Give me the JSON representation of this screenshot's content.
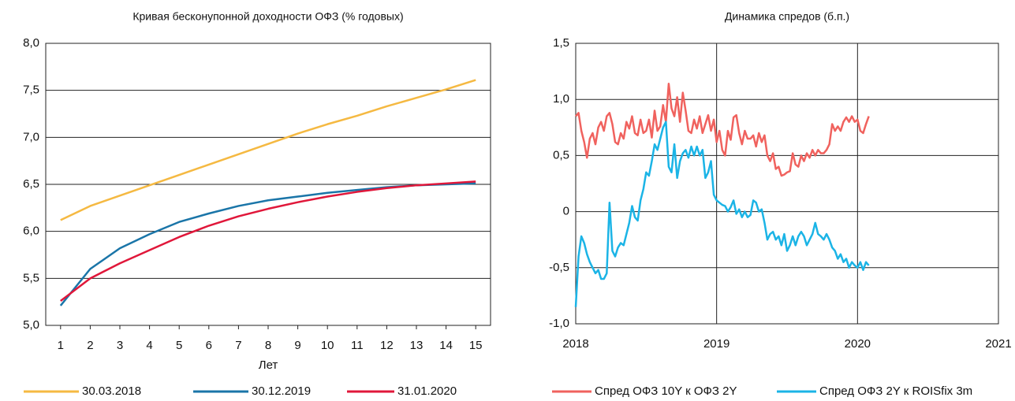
{
  "chart_data": [
    {
      "type": "line",
      "title": "Кривая бесконупонной доходности ОФЗ (% годовых)",
      "x_label": "Лет",
      "x": [
        1,
        2,
        3,
        4,
        5,
        6,
        7,
        8,
        9,
        10,
        11,
        12,
        13,
        14,
        15
      ],
      "xlim": [
        0.5,
        15.5
      ],
      "xticks": [
        1,
        2,
        3,
        4,
        5,
        6,
        7,
        8,
        9,
        10,
        11,
        12,
        13,
        14,
        15
      ],
      "ylim": [
        5,
        8
      ],
      "yticks": [
        {
          "value": 5,
          "label": "5,0"
        },
        {
          "value": 5.5,
          "label": "5,5"
        },
        {
          "value": 6,
          "label": "6,0"
        },
        {
          "value": 6.5,
          "label": "6,5"
        },
        {
          "value": 7,
          "label": "7,0"
        },
        {
          "value": 7.5,
          "label": "7,5"
        },
        {
          "value": 8,
          "label": "8,0"
        }
      ],
      "grid": "y",
      "legend": "bottom",
      "series": [
        {
          "name": "30.03.2018",
          "color": "#f5b942",
          "values": [
            6.12,
            6.27,
            6.38,
            6.49,
            6.6,
            6.71,
            6.82,
            6.93,
            7.04,
            7.14,
            7.23,
            7.33,
            7.42,
            7.51,
            7.61
          ]
        },
        {
          "name": "30.12.2019",
          "color": "#1a75a8",
          "values": [
            5.21,
            5.6,
            5.82,
            5.97,
            6.1,
            6.19,
            6.27,
            6.33,
            6.37,
            6.41,
            6.44,
            6.47,
            6.49,
            6.5,
            6.51
          ]
        },
        {
          "name": "31.01.2020",
          "color": "#e0173a",
          "values": [
            5.26,
            5.5,
            5.66,
            5.8,
            5.94,
            6.06,
            6.16,
            6.24,
            6.31,
            6.37,
            6.42,
            6.46,
            6.49,
            6.51,
            6.53
          ]
        }
      ]
    },
    {
      "type": "line",
      "title": "Динамика спредов (б.п.)",
      "x": [
        2018,
        2018.02,
        2018.04,
        2018.06,
        2018.08,
        2018.1,
        2018.12,
        2018.14,
        2018.16,
        2018.18,
        2018.2,
        2018.22,
        2018.24,
        2018.26,
        2018.28,
        2018.3,
        2018.32,
        2018.34,
        2018.36,
        2018.38,
        2018.4,
        2018.42,
        2018.44,
        2018.46,
        2018.48,
        2018.5,
        2018.52,
        2018.54,
        2018.56,
        2018.58,
        2018.6,
        2018.62,
        2018.64,
        2018.66,
        2018.68,
        2018.7,
        2018.72,
        2018.74,
        2018.76,
        2018.78,
        2018.8,
        2018.82,
        2018.84,
        2018.86,
        2018.88,
        2018.9,
        2018.92,
        2018.94,
        2018.96,
        2018.98,
        2019,
        2019.02,
        2019.04,
        2019.06,
        2019.08,
        2019.1,
        2019.12,
        2019.14,
        2019.16,
        2019.18,
        2019.2,
        2019.22,
        2019.24,
        2019.26,
        2019.28,
        2019.3,
        2019.32,
        2019.34,
        2019.36,
        2019.38,
        2019.4,
        2019.42,
        2019.44,
        2019.46,
        2019.48,
        2019.5,
        2019.52,
        2019.54,
        2019.56,
        2019.58,
        2019.6,
        2019.62,
        2019.64,
        2019.66,
        2019.68,
        2019.7,
        2019.72,
        2019.74,
        2019.76,
        2019.78,
        2019.8,
        2019.82,
        2019.84,
        2019.86,
        2019.88,
        2019.9,
        2019.92,
        2019.94,
        2019.96,
        2019.98,
        2020,
        2020.02,
        2020.04,
        2020.06,
        2020.08
      ],
      "xlim": [
        2018,
        2021
      ],
      "xticks": [
        2018,
        2019,
        2020,
        2021
      ],
      "ylim": [
        -1,
        1.5
      ],
      "yticks": [
        {
          "value": -1,
          "label": "-1,0"
        },
        {
          "value": -0.5,
          "label": "-0,5"
        },
        0,
        {
          "value": 0.5,
          "label": "0,5"
        },
        {
          "value": 1,
          "label": "1,0"
        },
        {
          "value": 1.5,
          "label": "1,5"
        }
      ],
      "grid": "both",
      "legend": "bottom",
      "series": [
        {
          "name": "Спред ОФЗ 10Y к ОФЗ 2Y",
          "color": "#f0625e",
          "values": [
            0.85,
            0.88,
            0.72,
            0.62,
            0.48,
            0.65,
            0.7,
            0.6,
            0.75,
            0.8,
            0.72,
            0.85,
            0.88,
            0.78,
            0.62,
            0.6,
            0.7,
            0.65,
            0.8,
            0.74,
            0.85,
            0.7,
            0.68,
            0.82,
            0.7,
            0.72,
            0.82,
            0.66,
            0.9,
            0.72,
            0.76,
            0.95,
            0.8,
            1.14,
            0.92,
            0.85,
            1.02,
            0.8,
            1.06,
            0.9,
            0.72,
            0.7,
            0.82,
            0.74,
            0.85,
            0.7,
            0.78,
            0.86,
            0.72,
            0.82,
            0.62,
            0.72,
            0.55,
            0.5,
            0.72,
            0.64,
            0.84,
            0.86,
            0.7,
            0.6,
            0.72,
            0.65,
            0.65,
            0.68,
            0.58,
            0.7,
            0.62,
            0.68,
            0.5,
            0.45,
            0.52,
            0.38,
            0.4,
            0.32,
            0.33,
            0.35,
            0.36,
            0.52,
            0.42,
            0.4,
            0.5,
            0.45,
            0.52,
            0.48,
            0.55,
            0.5,
            0.55,
            0.52,
            0.52,
            0.55,
            0.6,
            0.78,
            0.72,
            0.76,
            0.72,
            0.8,
            0.84,
            0.8,
            0.85,
            0.8,
            0.82,
            0.72,
            0.7,
            0.78,
            0.85
          ]
        },
        {
          "name": "Спред ОФЗ 2Y к ROISfix 3m",
          "color": "#1bb4e6",
          "values": [
            -0.85,
            -0.4,
            -0.22,
            -0.28,
            -0.38,
            -0.45,
            -0.5,
            -0.55,
            -0.52,
            -0.6,
            -0.6,
            -0.55,
            0.08,
            -0.35,
            -0.4,
            -0.32,
            -0.28,
            -0.3,
            -0.2,
            -0.1,
            0.05,
            -0.05,
            -0.08,
            0.1,
            0.2,
            0.35,
            0.32,
            0.45,
            0.6,
            0.55,
            0.65,
            0.75,
            0.8,
            0.4,
            0.35,
            0.6,
            0.3,
            0.45,
            0.52,
            0.55,
            0.48,
            0.58,
            0.5,
            0.58,
            0.5,
            0.55,
            0.3,
            0.35,
            0.45,
            0.15,
            0.1,
            0.08,
            0.06,
            0.05,
            0.0,
            0.04,
            0.1,
            -0.02,
            0.02,
            -0.05,
            0.0,
            -0.05,
            -0.03,
            0.1,
            0.08,
            0.0,
            0.02,
            -0.1,
            -0.25,
            -0.2,
            -0.18,
            -0.25,
            -0.22,
            -0.3,
            -0.2,
            -0.35,
            -0.3,
            -0.22,
            -0.3,
            -0.22,
            -0.18,
            -0.22,
            -0.3,
            -0.25,
            -0.2,
            -0.1,
            -0.2,
            -0.22,
            -0.25,
            -0.2,
            -0.25,
            -0.32,
            -0.35,
            -0.42,
            -0.38,
            -0.45,
            -0.42,
            -0.5,
            -0.45,
            -0.48,
            -0.5,
            -0.45,
            -0.52,
            -0.45,
            -0.48
          ]
        }
      ]
    }
  ]
}
